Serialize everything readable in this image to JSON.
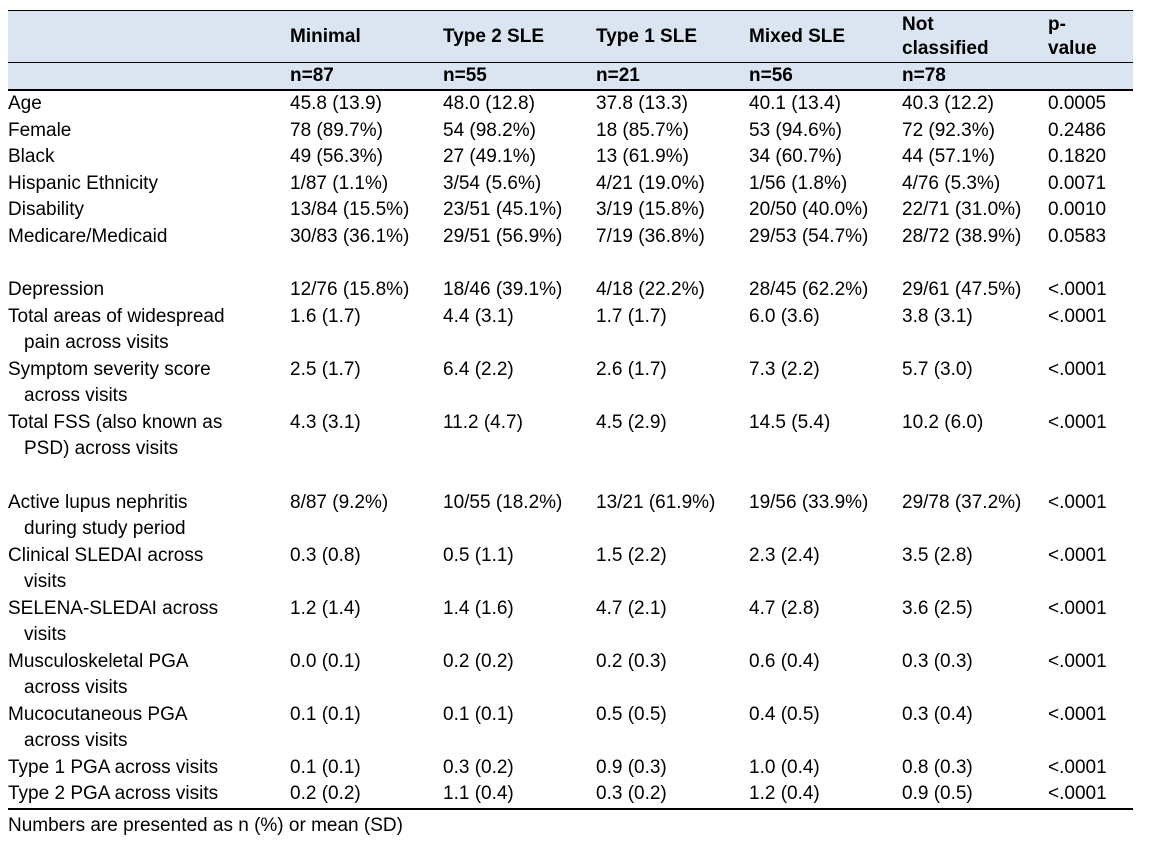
{
  "colors": {
    "header_bg": "#dbe5f1",
    "border": "#000000",
    "text": "#000000",
    "page_bg": "#ffffff"
  },
  "table": {
    "columns": [
      {
        "label": "",
        "n": ""
      },
      {
        "label": "Minimal",
        "n": "n=87"
      },
      {
        "label": "Type 2 SLE",
        "n": "n=55"
      },
      {
        "label": "Type 1 SLE",
        "n": "n=21"
      },
      {
        "label": "Mixed SLE",
        "n": "n=56"
      },
      {
        "label": "Not\nclassified",
        "n": "n=78"
      },
      {
        "label": "p-\nvalue",
        "n": ""
      }
    ],
    "rows": [
      {
        "label": "Age",
        "values": [
          "45.8 (13.9)",
          "48.0 (12.8)",
          "37.8 (13.3)",
          "40.1 (13.4)",
          "40.3 (12.2)",
          "0.0005"
        ]
      },
      {
        "label": "Female",
        "values": [
          "78 (89.7%)",
          "54 (98.2%)",
          "18 (85.7%)",
          "53 (94.6%)",
          "72 (92.3%)",
          "0.2486"
        ]
      },
      {
        "label": "Black",
        "values": [
          "49 (56.3%)",
          "27 (49.1%)",
          "13 (61.9%)",
          "34 (60.7%)",
          "44 (57.1%)",
          "0.1820"
        ]
      },
      {
        "label": "Hispanic Ethnicity",
        "values": [
          "1/87 (1.1%)",
          "3/54 (5.6%)",
          "4/21 (19.0%)",
          "1/56 (1.8%)",
          "4/76 (5.3%)",
          "0.0071"
        ]
      },
      {
        "label": "Disability",
        "values": [
          "13/84 (15.5%)",
          "23/51 (45.1%)",
          "3/19 (15.8%)",
          "20/50 (40.0%)",
          "22/71 (31.0%)",
          "0.0010"
        ]
      },
      {
        "label": "Medicare/Medicaid",
        "values": [
          "30/83 (36.1%)",
          "29/51 (56.9%)",
          "7/19 (36.8%)",
          "29/53 (54.7%)",
          "28/72 (38.9%)",
          "0.0583"
        ]
      },
      {
        "spacer": true
      },
      {
        "label": "Depression",
        "values": [
          "12/76 (15.8%)",
          "18/46 (39.1%)",
          "4/18 (22.2%)",
          "28/45 (62.2%)",
          "29/61 (47.5%)",
          "<.0001"
        ]
      },
      {
        "label": "Total areas of widespread\npain across visits",
        "values": [
          "1.6 (1.7)",
          "4.4 (3.1)",
          "1.7 (1.7)",
          "6.0 (3.6)",
          "3.8 (3.1)",
          "<.0001"
        ]
      },
      {
        "label": "Symptom severity score\nacross visits",
        "values": [
          "2.5 (1.7)",
          "6.4 (2.2)",
          "2.6 (1.7)",
          "7.3 (2.2)",
          "5.7 (3.0)",
          "<.0001"
        ]
      },
      {
        "label": "Total FSS (also known as\nPSD) across visits",
        "values": [
          "4.3 (3.1)",
          "11.2 (4.7)",
          "4.5 (2.9)",
          "14.5 (5.4)",
          "10.2 (6.0)",
          "<.0001"
        ]
      },
      {
        "spacer": true
      },
      {
        "label": "Active lupus nephritis\nduring study period",
        "values": [
          "8/87 (9.2%)",
          "10/55 (18.2%)",
          "13/21 (61.9%)",
          "19/56 (33.9%)",
          "29/78 (37.2%)",
          "<.0001"
        ]
      },
      {
        "label": "Clinical SLEDAI across\nvisits",
        "values": [
          "0.3 (0.8)",
          "0.5 (1.1)",
          "1.5 (2.2)",
          "2.3 (2.4)",
          "3.5 (2.8)",
          "<.0001"
        ]
      },
      {
        "label": "SELENA-SLEDAI across\nvisits",
        "values": [
          "1.2 (1.4)",
          "1.4 (1.6)",
          "4.7 (2.1)",
          "4.7 (2.8)",
          "3.6 (2.5)",
          "<.0001"
        ]
      },
      {
        "label": "Musculoskeletal PGA\nacross visits",
        "values": [
          "0.0 (0.1)",
          "0.2 (0.2)",
          "0.2 (0.3)",
          "0.6 (0.4)",
          "0.3 (0.3)",
          "<.0001"
        ]
      },
      {
        "label": "Mucocutaneous PGA\nacross visits",
        "values": [
          "0.1 (0.1)",
          "0.1 (0.1)",
          "0.5 (0.5)",
          "0.4 (0.5)",
          "0.3 (0.4)",
          "<.0001"
        ]
      },
      {
        "label": "Type 1 PGA across visits",
        "values": [
          "0.1 (0.1)",
          "0.3 (0.2)",
          "0.9 (0.3)",
          "1.0 (0.4)",
          "0.8 (0.3)",
          "<.0001"
        ]
      },
      {
        "label": "Type 2 PGA across visits",
        "values": [
          "0.2 (0.2)",
          "1.1 (0.4)",
          "0.3 (0.2)",
          "1.2 (0.4)",
          "0.9 (0.5)",
          "<.0001"
        ]
      }
    ]
  },
  "footnote": "Numbers are presented as n (%) or mean (SD)"
}
